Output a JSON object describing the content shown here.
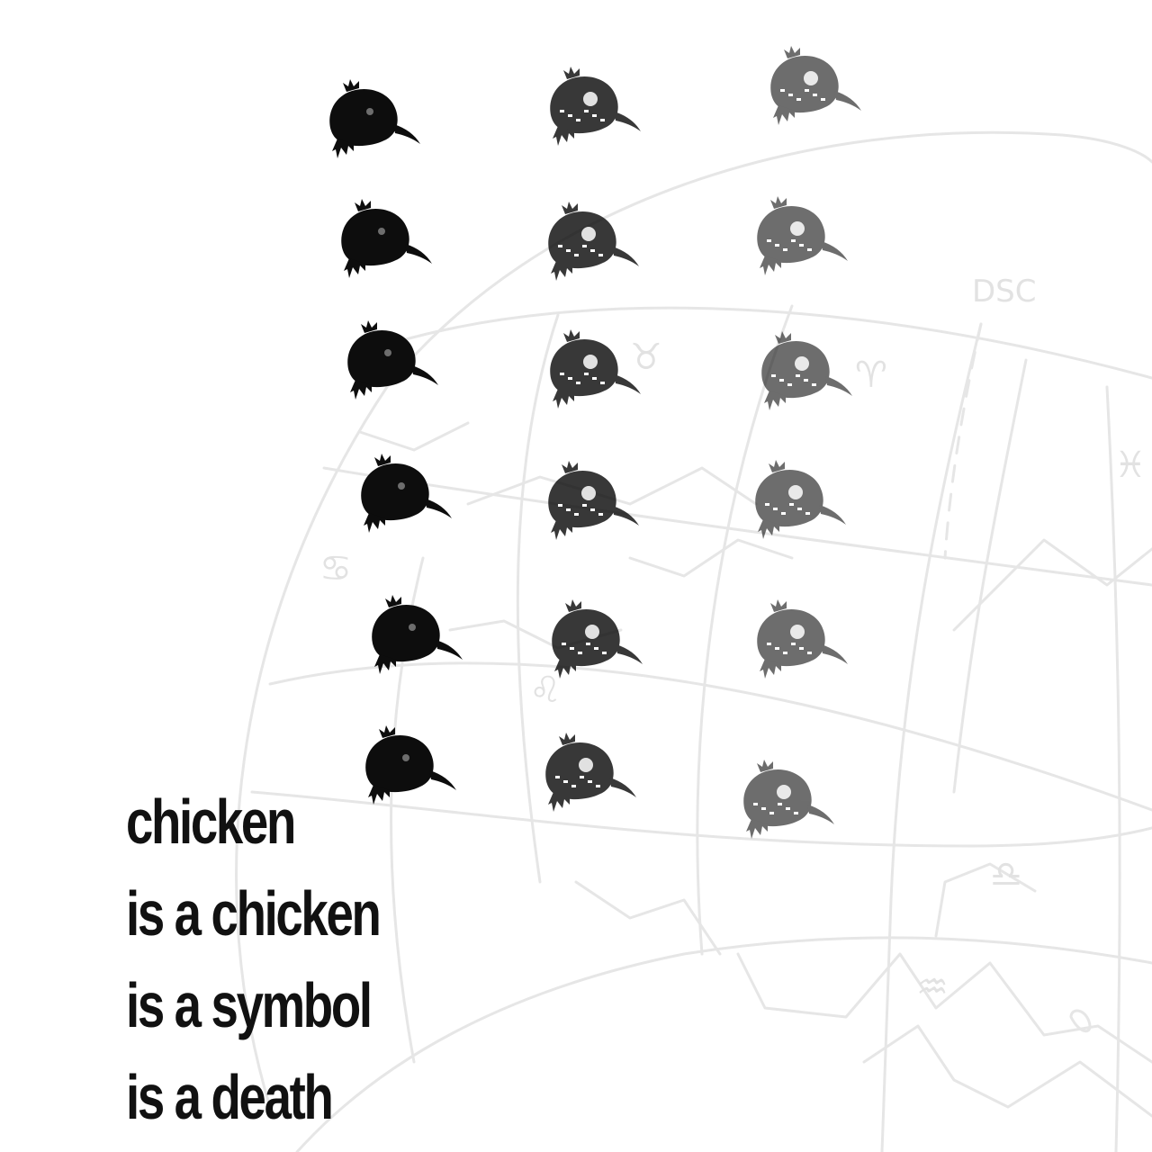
{
  "poem": {
    "lines": [
      "chicken",
      "is a chicken",
      "is a symbol",
      "is a death"
    ]
  },
  "background_map": {
    "labels": [
      "DSC"
    ],
    "glyphs": [
      "♉",
      "♈",
      "♓",
      "♋",
      "♌",
      "♎",
      "♒"
    ]
  },
  "artwork": {
    "motif": "chicken-head-stamp",
    "rows": 6,
    "columns": 3,
    "ink_color": "#0d0d0d",
    "map_color": "#e6e6e6",
    "text_color": "#111111"
  }
}
